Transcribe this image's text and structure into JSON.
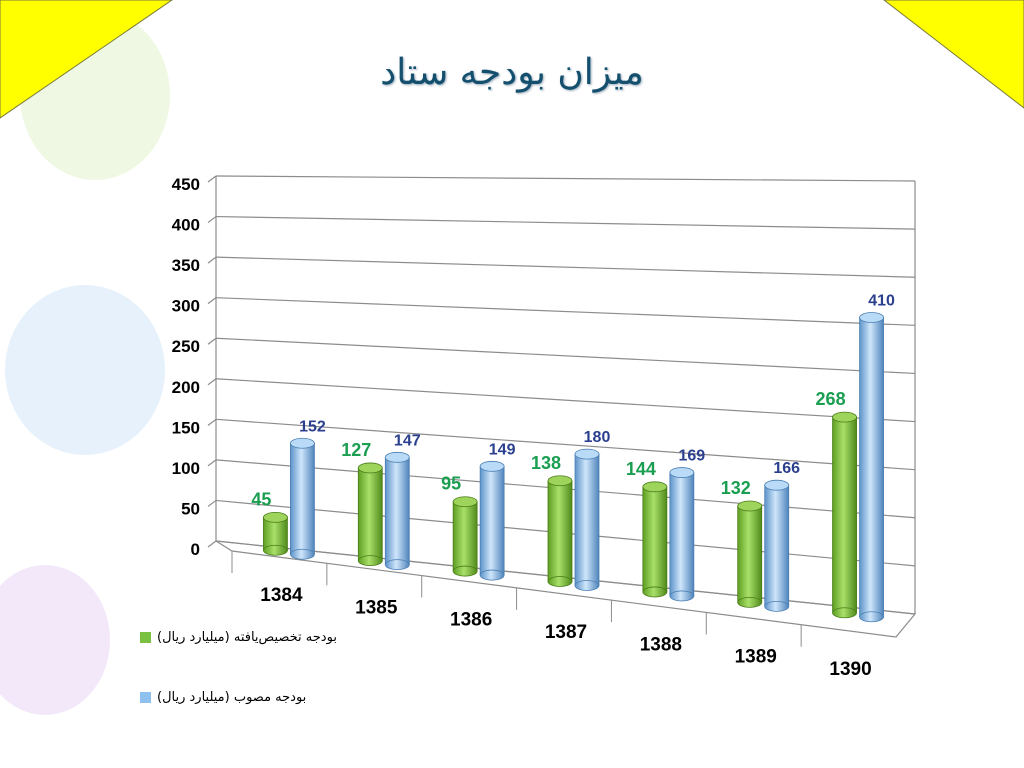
{
  "slide": {
    "title": "میزان بودجه ستاد"
  },
  "chart_data": {
    "type": "bar",
    "categories": [
      "1384",
      "1385",
      "1386",
      "1387",
      "1388",
      "1389",
      "1390"
    ],
    "series": [
      {
        "name": "بودجه تخصیص‌یافته (میلیارد ریال)",
        "values": [
          45,
          127,
          95,
          138,
          144,
          132,
          268
        ],
        "color": "#7ac142",
        "label_color": "#1a9e50"
      },
      {
        "name": "بودجه مصوب (میلیارد ریال)",
        "values": [
          152,
          147,
          149,
          180,
          169,
          166,
          410
        ],
        "color": "#8fc1ee",
        "label_color": "#2b3f8f"
      }
    ],
    "ylim": [
      0,
      450
    ],
    "yticks": [
      0,
      50,
      100,
      150,
      200,
      250,
      300,
      350,
      400,
      450
    ],
    "grid": true,
    "legend_position": "bottom-left",
    "title": "",
    "xlabel": "",
    "ylabel": ""
  },
  "colors": {
    "title": "#14506e",
    "corner_triangles": "#ffff00",
    "gridline": "#8c8c8c"
  }
}
